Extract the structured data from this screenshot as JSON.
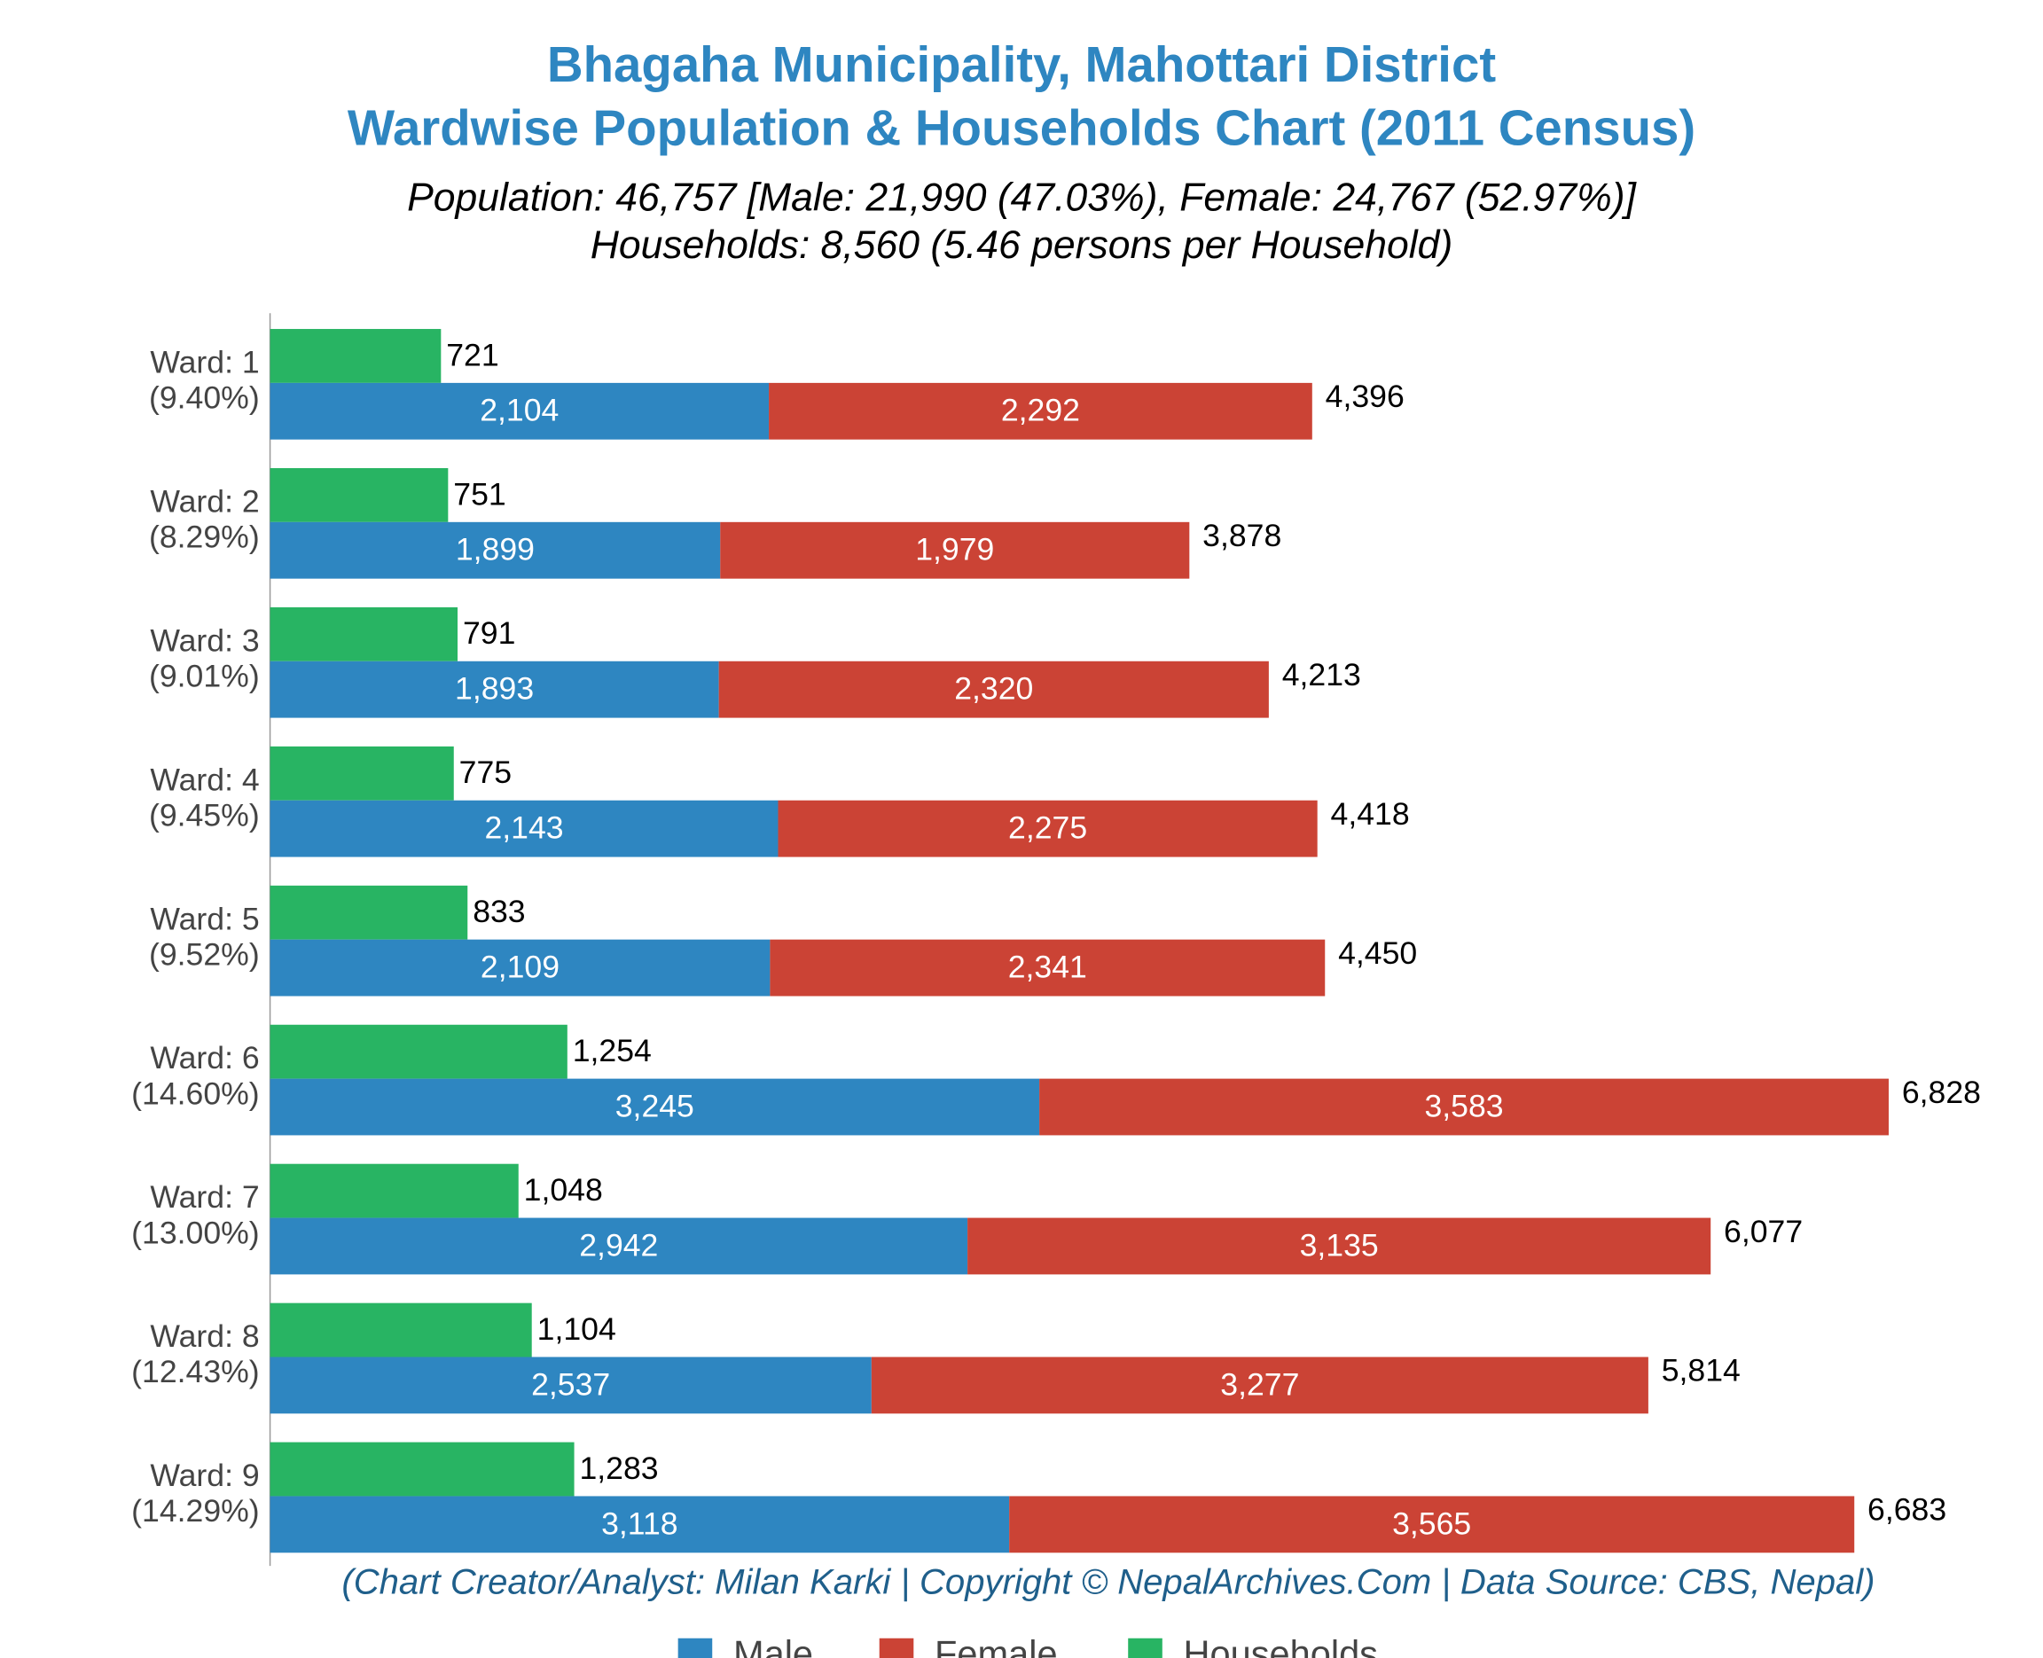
{
  "chart_data": {
    "type": "hbar",
    "title": [
      "Bhagaha Municipality, Mahottari District",
      "Wardwise Population & Households Chart (2011 Census)"
    ],
    "subtitle": [
      "Population: 46,757 [Male: 21,990 (47.03%), Female: 24,767 (52.97%)]",
      "Households: 8,560 (5.46 persons per Household)"
    ],
    "credit": "(Chart Creator/Analyst: Milan Karki | Copyright © NepalArchives.Com | Data Source: CBS, Nepal)",
    "categories": [
      "Ward: 1",
      "Ward: 2",
      "Ward: 3",
      "Ward: 4",
      "Ward: 5",
      "Ward: 6",
      "Ward: 7",
      "Ward: 8",
      "Ward: 9"
    ],
    "category_shares": [
      "(9.40%)",
      "(8.29%)",
      "(9.01%)",
      "(9.45%)",
      "(9.52%)",
      "(14.60%)",
      "(13.00%)",
      "(12.43%)",
      "(14.29%)"
    ],
    "series": [
      {
        "name": "Male",
        "color": "#2e86c1",
        "values": [
          2104,
          1899,
          1893,
          2143,
          2109,
          3245,
          2942,
          2537,
          3118
        ],
        "value_labels": [
          "2,104",
          "1,899",
          "1,893",
          "2,143",
          "2,109",
          "3,245",
          "2,942",
          "2,537",
          "3,118"
        ]
      },
      {
        "name": "Female",
        "color": "#cb4335",
        "values": [
          2292,
          1979,
          2320,
          2275,
          2341,
          3583,
          3135,
          3277,
          3565
        ],
        "value_labels": [
          "2,292",
          "1,979",
          "2,320",
          "2,275",
          "2,341",
          "3,583",
          "3,135",
          "3,277",
          "3,565"
        ]
      },
      {
        "name": "Households",
        "color": "#28b463",
        "values": [
          721,
          751,
          791,
          775,
          833,
          1254,
          1048,
          1104,
          1283
        ],
        "value_labels": [
          "721",
          "751",
          "791",
          "775",
          "833",
          "1,254",
          "1,048",
          "1,104",
          "1,283"
        ]
      }
    ],
    "totals": {
      "values": [
        4396,
        3878,
        4213,
        4418,
        4450,
        6828,
        6077,
        5814,
        6683
      ],
      "value_labels": [
        "4,396",
        "3,878",
        "4,213",
        "4,418",
        "4,450",
        "6,828",
        "6,077",
        "5,814",
        "6,683"
      ]
    },
    "xlim": [
      0,
      7400
    ],
    "legend": "bottom"
  }
}
